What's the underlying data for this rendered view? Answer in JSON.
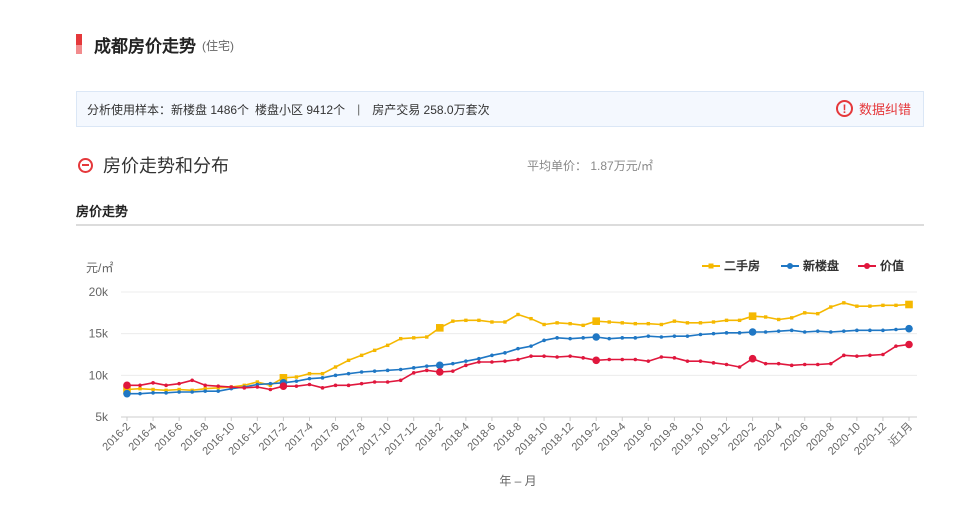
{
  "page": {
    "title": "成都房价走势",
    "title_sub": "(住宅)",
    "sample": {
      "label": "分析使用样本：",
      "new_count": "新楼盘 1486个",
      "community_count": "楼盘小区 9412个",
      "separator": "|",
      "transactions": "房产交易 258.0万套次",
      "report_icon_glyph": "!",
      "report_label": "数据纠错"
    },
    "section": {
      "title": "房价走势和分布",
      "avg_label": "平均单价：",
      "avg_value": "1.87万元/㎡"
    },
    "sub_title": "房价走势"
  },
  "colors": {
    "accent": "#e5383b",
    "second_hand": "#f5b800",
    "new_home": "#1f77c4",
    "value": "#e0173d"
  },
  "chart_data": {
    "type": "line",
    "ylabel": "元/㎡",
    "xlabel": "年 – 月",
    "ylim": [
      5000,
      20000
    ],
    "yticks": [
      5000,
      10000,
      15000,
      20000
    ],
    "ytick_labels": [
      "5k",
      "10k",
      "15k",
      "20k"
    ],
    "grid": true,
    "legend_position": "top-right",
    "x_labels": [
      "2016-2",
      "2016-4",
      "2016-6",
      "2016-8",
      "2016-10",
      "2016-12",
      "2017-2",
      "2017-4",
      "2017-6",
      "2017-8",
      "2017-10",
      "2017-12",
      "2018-2",
      "2018-4",
      "2018-6",
      "2018-8",
      "2018-10",
      "2018-12",
      "2019-2",
      "2019-4",
      "2019-6",
      "2019-8",
      "2019-10",
      "2019-12",
      "2020-2",
      "2020-4",
      "2020-6",
      "2020-8",
      "2020-10",
      "2020-12",
      "近1月"
    ],
    "series": [
      {
        "name": "二手房",
        "color_key": "second_hand",
        "values": [
          8300,
          8400,
          8300,
          8200,
          8300,
          8200,
          8400,
          8500,
          8600,
          8800,
          9200,
          8800,
          9700,
          9800,
          10200,
          10200,
          11000,
          11800,
          12400,
          13000,
          13600,
          14400,
          14500,
          14600,
          15700,
          16500,
          16600,
          16600,
          16400,
          16400,
          17300,
          16800,
          16100,
          16300,
          16200,
          16000,
          16500,
          16400,
          16300,
          16200,
          16200,
          16100,
          16500,
          16300,
          16300,
          16400,
          16600,
          16600,
          17100,
          17000,
          16700,
          16900,
          17500,
          17400,
          18200,
          18700,
          18300,
          18300,
          18400,
          18400,
          18500
        ]
      },
      {
        "name": "新楼盘",
        "color_key": "new_home",
        "values": [
          7800,
          7800,
          7900,
          7900,
          8000,
          8000,
          8100,
          8100,
          8400,
          8600,
          8900,
          9000,
          9100,
          9300,
          9600,
          9700,
          10000,
          10200,
          10400,
          10500,
          10600,
          10700,
          10900,
          11100,
          11200,
          11400,
          11700,
          12000,
          12400,
          12700,
          13200,
          13500,
          14200,
          14500,
          14400,
          14500,
          14600,
          14400,
          14500,
          14500,
          14700,
          14600,
          14700,
          14700,
          14900,
          15000,
          15100,
          15100,
          15200,
          15200,
          15300,
          15400,
          15200,
          15300,
          15200,
          15300,
          15400,
          15400,
          15400,
          15500,
          15600
        ]
      },
      {
        "name": "价值",
        "color_key": "value",
        "values": [
          8800,
          8800,
          9100,
          8800,
          9000,
          9400,
          8800,
          8700,
          8600,
          8500,
          8600,
          8300,
          8700,
          8700,
          8900,
          8500,
          8800,
          8800,
          9000,
          9200,
          9200,
          9400,
          10300,
          10600,
          10400,
          10500,
          11200,
          11600,
          11600,
          11700,
          11900,
          12300,
          12300,
          12200,
          12300,
          12100,
          11800,
          11900,
          11900,
          11900,
          11700,
          12200,
          12100,
          11700,
          11700,
          11500,
          11300,
          11000,
          12000,
          11400,
          11400,
          11200,
          11300,
          11300,
          11400,
          12400,
          12300,
          12400,
          12500,
          13500,
          13700
        ]
      }
    ]
  }
}
